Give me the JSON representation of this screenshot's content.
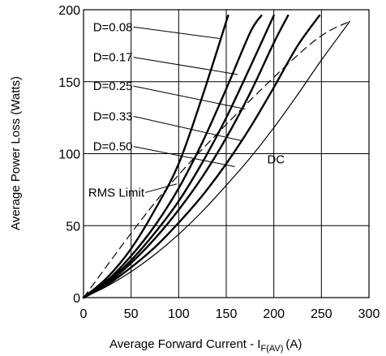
{
  "chart_data": {
    "type": "line",
    "xlabel": "Average Forward Current - I",
    "xlabel_sub": "F(AV)",
    "xlabel_unit": "(A)",
    "ylabel": "Average Power Loss (Watts)",
    "xlim": [
      0,
      300
    ],
    "ylim": [
      0,
      200
    ],
    "x_ticks": [
      "0",
      "50",
      "100",
      "150",
      "200",
      "250",
      "300"
    ],
    "y_ticks": [
      "0",
      "50",
      "100",
      "150",
      "200"
    ],
    "grid": true,
    "series": [
      {
        "name": "D=0.08",
        "style": "solid",
        "width": "bold",
        "points": [
          [
            0,
            0
          ],
          [
            25,
            14
          ],
          [
            50,
            34
          ],
          [
            75,
            61
          ],
          [
            100,
            93
          ],
          [
            125,
            140
          ],
          [
            152,
            196
          ]
        ]
      },
      {
        "name": "D=0.17",
        "style": "solid",
        "width": "bold",
        "points": [
          [
            0,
            0
          ],
          [
            25,
            12
          ],
          [
            50,
            29
          ],
          [
            75,
            50
          ],
          [
            100,
            76
          ],
          [
            125,
            108
          ],
          [
            150,
            145
          ],
          [
            175,
            184
          ],
          [
            187,
            196
          ]
        ]
      },
      {
        "name": "D=0.25",
        "style": "solid",
        "width": "bold",
        "points": [
          [
            0,
            0
          ],
          [
            25,
            11
          ],
          [
            50,
            26
          ],
          [
            75,
            45
          ],
          [
            100,
            67
          ],
          [
            125,
            94
          ],
          [
            150,
            125
          ],
          [
            175,
            160
          ],
          [
            200,
            196
          ]
        ]
      },
      {
        "name": "D=0.33",
        "style": "solid",
        "width": "bold",
        "points": [
          [
            0,
            0
          ],
          [
            25,
            10
          ],
          [
            50,
            24
          ],
          [
            75,
            41
          ],
          [
            100,
            61
          ],
          [
            125,
            84
          ],
          [
            150,
            111
          ],
          [
            175,
            142
          ],
          [
            200,
            177
          ],
          [
            215,
            196
          ]
        ]
      },
      {
        "name": "D=0.50",
        "style": "solid",
        "width": "bold",
        "points": [
          [
            0,
            0
          ],
          [
            25,
            9
          ],
          [
            50,
            21
          ],
          [
            75,
            35
          ],
          [
            100,
            52
          ],
          [
            125,
            71
          ],
          [
            150,
            93
          ],
          [
            175,
            118
          ],
          [
            200,
            146
          ],
          [
            225,
            175
          ],
          [
            248,
            196
          ]
        ]
      },
      {
        "name": "DC",
        "style": "solid",
        "width": "thin",
        "points": [
          [
            0,
            0
          ],
          [
            25,
            8
          ],
          [
            50,
            18
          ],
          [
            75,
            30
          ],
          [
            100,
            44
          ],
          [
            125,
            60
          ],
          [
            150,
            78
          ],
          [
            175,
            97
          ],
          [
            200,
            118
          ],
          [
            225,
            141
          ],
          [
            250,
            165
          ],
          [
            280,
            192
          ]
        ]
      },
      {
        "name": "RMS Limit",
        "style": "dashed",
        "width": "thin",
        "points": [
          [
            0,
            0
          ],
          [
            80,
            70
          ],
          [
            160,
            127
          ],
          [
            240,
            177
          ],
          [
            280,
            192
          ]
        ]
      }
    ],
    "annotations": [
      {
        "text": "D=0.08",
        "series": "D=0.08",
        "label_at": [
          10,
          188
        ],
        "arrow_to": [
          143,
          180
        ]
      },
      {
        "text": "D=0.17",
        "series": "D=0.17",
        "label_at": [
          10,
          167
        ],
        "arrow_to": [
          162,
          155
        ]
      },
      {
        "text": "D=0.25",
        "series": "D=0.25",
        "label_at": [
          10,
          147
        ],
        "arrow_to": [
          170,
          131
        ]
      },
      {
        "text": "D=0.33",
        "series": "D=0.33",
        "label_at": [
          10,
          126
        ],
        "arrow_to": [
          166,
          109
        ]
      },
      {
        "text": "D=0.50",
        "series": "D=0.50",
        "label_at": [
          10,
          105
        ],
        "arrow_to": [
          159,
          91
        ]
      },
      {
        "text": "DC",
        "series": "DC",
        "label_at": [
          193,
          96
        ]
      },
      {
        "text": "RMS Limit",
        "series": "RMS Limit",
        "label_at": [
          5,
          73
        ],
        "arrow_to": [
          98,
          79
        ]
      }
    ]
  }
}
